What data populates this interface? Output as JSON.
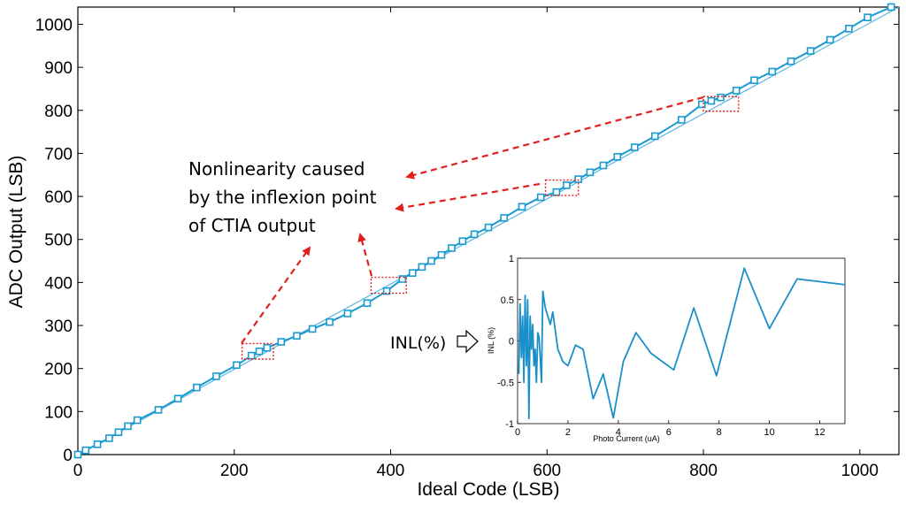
{
  "chart_data": [
    {
      "type": "line",
      "xlabel": "Ideal Code (LSB)",
      "ylabel": "ADC Output (LSB)",
      "xlim": [
        0,
        1050
      ],
      "ylim": [
        0,
        1040
      ],
      "x_ticks": [
        "0",
        "200",
        "400",
        "600",
        "800",
        "1000"
      ],
      "y_ticks": [
        "0",
        "100",
        "200",
        "300",
        "400",
        "500",
        "600",
        "700",
        "800",
        "900",
        "1000"
      ],
      "series": [
        {
          "name": "Ideal",
          "x": [
            0,
            1050
          ],
          "y": [
            0,
            1040
          ]
        },
        {
          "name": "ADC Output",
          "marker": "square",
          "x": [
            0,
            10,
            25,
            40,
            52,
            64,
            76,
            103,
            128,
            152,
            177,
            203,
            222,
            232,
            242,
            260,
            280,
            300,
            322,
            345,
            370,
            395,
            415,
            428,
            440,
            452,
            465,
            478,
            492,
            507,
            525,
            545,
            568,
            592,
            612,
            625,
            640,
            655,
            672,
            690,
            712,
            738,
            772,
            798,
            810,
            822,
            842,
            865,
            888,
            912,
            937,
            962,
            986,
            1010,
            1040
          ],
          "y": [
            0,
            10,
            24,
            38,
            52,
            66,
            80,
            104,
            130,
            156,
            182,
            208,
            230,
            240,
            248,
            262,
            276,
            292,
            308,
            328,
            352,
            380,
            408,
            422,
            436,
            450,
            464,
            480,
            496,
            512,
            528,
            550,
            576,
            598,
            610,
            626,
            640,
            656,
            672,
            692,
            714,
            740,
            778,
            814,
            822,
            830,
            846,
            870,
            890,
            914,
            938,
            964,
            990,
            1016,
            1040
          ]
        }
      ],
      "annotations": [
        {
          "text_lines": [
            "Nonlinearity caused",
            "by the inflexion point",
            "of CTIA output"
          ]
        }
      ],
      "highlight_regions": [
        {
          "x": [
            210,
            250
          ],
          "y": [
            222,
            258
          ]
        },
        {
          "x": [
            375,
            420
          ],
          "y": [
            375,
            412
          ]
        },
        {
          "x": [
            598,
            640
          ],
          "y": [
            602,
            638
          ]
        },
        {
          "x": [
            800,
            845
          ],
          "y": [
            798,
            832
          ]
        }
      ]
    },
    {
      "type": "line",
      "xlabel": "Photo Current (uA)",
      "ylabel": "INL (%)",
      "xlim": [
        0,
        13
      ],
      "ylim": [
        -1,
        1
      ],
      "x_ticks": [
        "0",
        "2",
        "4",
        "6",
        "8",
        "10",
        "12"
      ],
      "y_ticks": [
        "1",
        "0.5",
        "0",
        "-0.5",
        "-1"
      ],
      "series": [
        {
          "name": "INL",
          "x": [
            0.05,
            0.1,
            0.15,
            0.2,
            0.25,
            0.3,
            0.35,
            0.4,
            0.45,
            0.5,
            0.55,
            0.6,
            0.65,
            0.7,
            0.75,
            0.8,
            0.85,
            0.9,
            0.95,
            1.0,
            1.1,
            1.3,
            1.4,
            1.6,
            1.8,
            2.0,
            2.3,
            2.6,
            3.0,
            3.4,
            3.8,
            4.2,
            4.7,
            5.3,
            6.2,
            7.0,
            7.9,
            9.0,
            10.0,
            11.1,
            13.0
          ],
          "y": [
            -0.4,
            0.45,
            -0.2,
            0.3,
            -0.5,
            0.55,
            -0.3,
            0.5,
            -0.94,
            0.3,
            -0.1,
            0.2,
            -0.3,
            -0.1,
            -0.5,
            0.1,
            0.05,
            -0.2,
            -0.5,
            0.6,
            0.4,
            0.2,
            0.35,
            -0.1,
            -0.25,
            -0.3,
            -0.05,
            -0.1,
            -0.7,
            -0.4,
            -0.93,
            -0.25,
            0.1,
            -0.15,
            -0.35,
            0.4,
            -0.42,
            0.88,
            0.15,
            0.75,
            0.68
          ]
        }
      ],
      "callout": "INL(%)"
    }
  ],
  "colors": {
    "line": "#1a9ad0",
    "ideal": "#5bb6e0",
    "annotation": "#e0201b",
    "inset_line": "#1a8fca"
  }
}
